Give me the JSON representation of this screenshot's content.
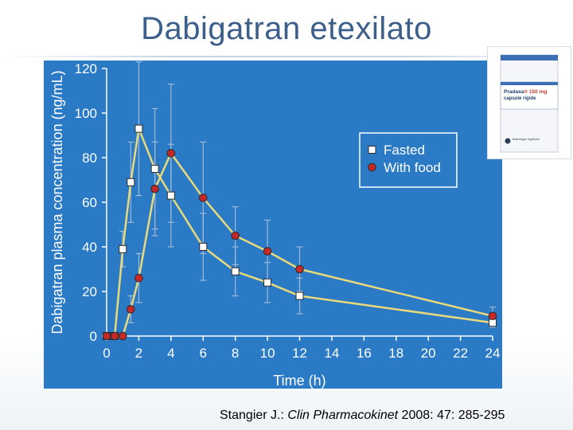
{
  "slide": {
    "title": "Dabigatran etexilato"
  },
  "citation": {
    "author": "Stangier J.: ",
    "journal": "Clin Pharmacokinet",
    "ref": " 2008: 47: 285-295"
  },
  "product_box": {
    "brand": "Pradaxa",
    "strength": "® 150 mg",
    "form_line1": "capsule rigide",
    "form_line2": "",
    "count": "",
    "manufacturer": "Boehringer Ingelheim",
    "colors": {
      "accent": "#c0392b",
      "stripe": "#3d6fb4"
    }
  },
  "chart_data": {
    "type": "line",
    "background": "#2a7ac6",
    "grid": false,
    "legend_position": "top-right",
    "xlabel": "Time (h)",
    "ylabel": "Dabigatran plasma concentration (ng/mL)",
    "xlim": [
      0,
      24
    ],
    "ylim": [
      0,
      120
    ],
    "xticks": [
      0,
      2,
      4,
      6,
      8,
      10,
      12,
      14,
      16,
      18,
      20,
      22,
      24
    ],
    "yticks": [
      0,
      20,
      40,
      60,
      80,
      100,
      120
    ],
    "series": [
      {
        "name": "Fasted",
        "marker": "square",
        "marker_color": "#ffffff",
        "line_color": "#e9d97a",
        "points": [
          {
            "x": 0,
            "y": 0
          },
          {
            "x": 0.5,
            "y": 0
          },
          {
            "x": 1,
            "y": 39,
            "err": 8
          },
          {
            "x": 1.5,
            "y": 69,
            "err": 18
          },
          {
            "x": 2,
            "y": 93,
            "err": 30
          },
          {
            "x": 3,
            "y": 75,
            "err": 27
          },
          {
            "x": 4,
            "y": 63,
            "err": 23
          },
          {
            "x": 6,
            "y": 40,
            "err": 15
          },
          {
            "x": 8,
            "y": 29,
            "err": 11
          },
          {
            "x": 10,
            "y": 24,
            "err": 9
          },
          {
            "x": 12,
            "y": 18,
            "err": 8
          },
          {
            "x": 24,
            "y": 6,
            "err": 2
          }
        ]
      },
      {
        "name": "With food",
        "marker": "circle",
        "marker_color": "#c62828",
        "line_color": "#e9d97a",
        "points": [
          {
            "x": 0,
            "y": 0
          },
          {
            "x": 0.5,
            "y": 0
          },
          {
            "x": 1,
            "y": 0
          },
          {
            "x": 1.5,
            "y": 12,
            "err": 6
          },
          {
            "x": 2,
            "y": 26,
            "err": 11
          },
          {
            "x": 3,
            "y": 66,
            "err": 21
          },
          {
            "x": 4,
            "y": 82,
            "err": 31
          },
          {
            "x": 6,
            "y": 62,
            "err": 25
          },
          {
            "x": 8,
            "y": 45,
            "err": 13
          },
          {
            "x": 10,
            "y": 38,
            "err": 14
          },
          {
            "x": 12,
            "y": 30,
            "err": 10
          },
          {
            "x": 24,
            "y": 9,
            "err": 4
          }
        ]
      }
    ]
  }
}
